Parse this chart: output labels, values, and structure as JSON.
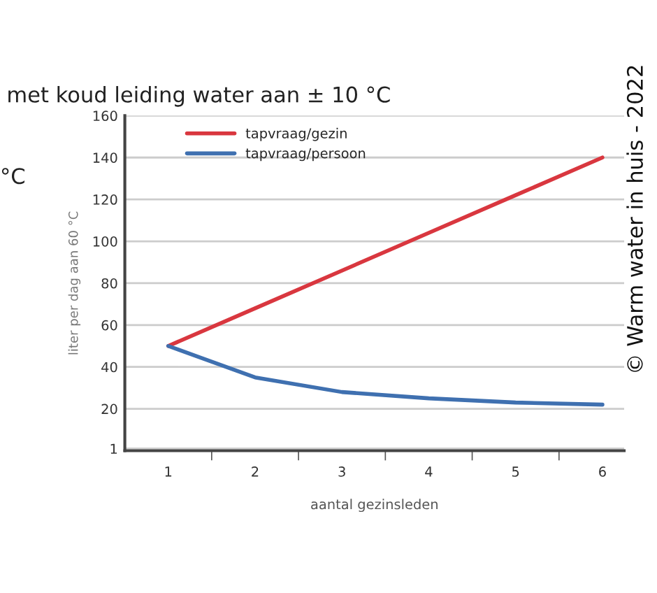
{
  "chart_data": {
    "type": "line",
    "title": "met koud leiding water aan ± 10 °C",
    "xlabel": "aantal gezinsleden",
    "ylabel": "liter per dag aan 60 °C",
    "categories": [
      "1",
      "2",
      "3",
      "4",
      "5",
      "6"
    ],
    "series": [
      {
        "name": "tapvraag/gezin",
        "color": "#d9373f",
        "values": [
          50,
          68,
          86,
          104,
          122,
          140
        ]
      },
      {
        "name": "tapvraag/persoon",
        "color": "#3f70b0",
        "values": [
          50,
          35,
          28,
          25,
          23,
          22
        ]
      }
    ],
    "ylim": [
      0,
      160
    ],
    "yticks": [
      1,
      20,
      40,
      60,
      80,
      100,
      120,
      140,
      160
    ],
    "grid": "y",
    "legend": "top left",
    "marker": "none",
    "line_style": "solid",
    "annotations": [
      "°C",
      "© Warm water in huis - 2022"
    ]
  }
}
